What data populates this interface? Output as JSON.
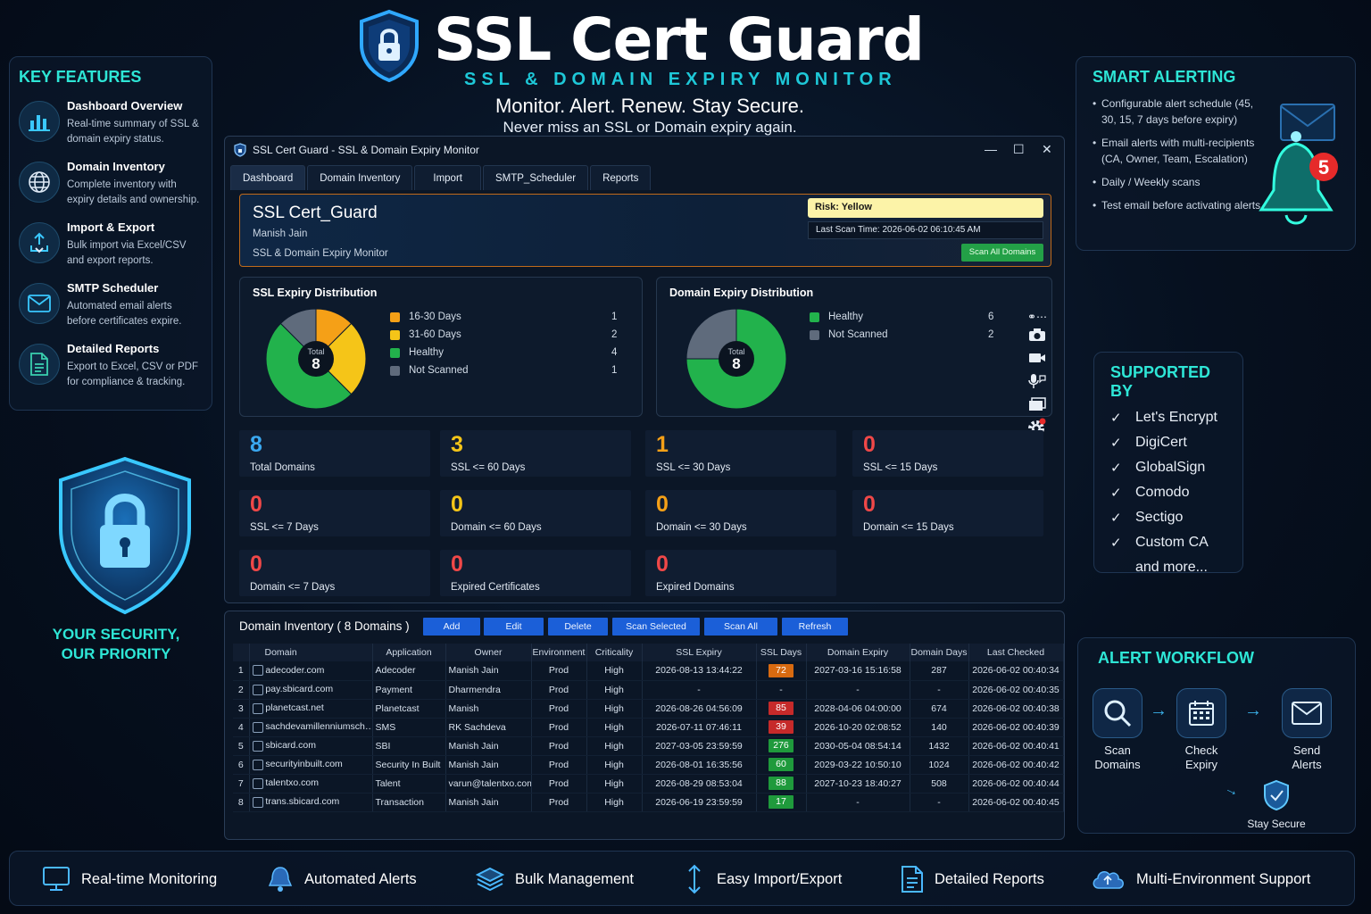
{
  "header": {
    "title": "SSL Cert Guard",
    "subtitle": "SSL & DOMAIN EXPIRY MONITOR",
    "tagline": "Monitor. Alert. Renew. Stay Secure.",
    "tagline2": "Never miss an SSL or Domain expiry again."
  },
  "key_features": {
    "title": "KEY FEATURES",
    "items": [
      {
        "icon": "bar-chart-icon",
        "name": "Dashboard Overview",
        "desc": "Real-time summary of SSL & domain expiry status."
      },
      {
        "icon": "globe-icon",
        "name": "Domain Inventory",
        "desc": "Complete inventory with expiry details and ownership."
      },
      {
        "icon": "import-export-icon",
        "name": "Import & Export",
        "desc": "Bulk import via Excel/CSV and export reports."
      },
      {
        "icon": "mail-icon",
        "name": "SMTP Scheduler",
        "desc": "Automated email alerts before certificates expire."
      },
      {
        "icon": "document-icon",
        "name": "Detailed Reports",
        "desc": "Export to Excel, CSV or PDF for compliance & tracking."
      }
    ]
  },
  "security": {
    "line1": "YOUR SECURITY,",
    "line2": "OUR PRIORITY"
  },
  "smart_alerting": {
    "title": "SMART ALERTING",
    "items": [
      "Configurable alert schedule (45, 30, 15, 7 days before expiry)",
      "Email alerts with multi-recipients (CA, Owner, Team, Escalation)",
      "Daily / Weekly scans",
      "Test email before activating alerts"
    ],
    "bell_count": "5"
  },
  "supported_by": {
    "title": "SUPPORTED BY",
    "items": [
      "Let's Encrypt",
      "DigiCert",
      "GlobalSign",
      "Comodo",
      "Sectigo",
      "Custom CA"
    ],
    "more": "and more..."
  },
  "alert_workflow": {
    "title": "ALERT WORKFLOW",
    "steps": [
      {
        "line1": "Scan",
        "line2": "Domains"
      },
      {
        "line1": "Check",
        "line2": "Expiry"
      },
      {
        "line1": "Send",
        "line2": "Alerts"
      }
    ],
    "final": "Stay Secure"
  },
  "window": {
    "title": "SSL Cert Guard - SSL & Domain Expiry Monitor",
    "tabs": [
      "Dashboard",
      "Domain Inventory",
      "Import",
      "SMTP_Scheduler",
      "Reports"
    ],
    "hero": {
      "name": "SSL Cert_Guard",
      "user": "Manish Jain",
      "desc": "SSL & Domain Expiry Monitor",
      "risk": "Risk: Yellow",
      "last_scan": "Last Scan Time: 2026-06-02 06:10:45 AM",
      "scan_button": "Scan All Domains"
    },
    "ssl_chart": {
      "title": "SSL Expiry Distribution",
      "total_label": "Total",
      "total": "8",
      "legend": [
        {
          "label": "16-30 Days",
          "value": "1",
          "color": "#f5a017"
        },
        {
          "label": "31-60 Days",
          "value": "2",
          "color": "#f5c518"
        },
        {
          "label": "Healthy",
          "value": "4",
          "color": "#22b24c"
        },
        {
          "label": "Not Scanned",
          "value": "1",
          "color": "#5f6b7c"
        }
      ]
    },
    "domain_chart": {
      "title": "Domain Expiry Distribution",
      "total_label": "Total",
      "total": "8",
      "legend": [
        {
          "label": "Healthy",
          "value": "6",
          "color": "#22b24c"
        },
        {
          "label": "Not Scanned",
          "value": "2",
          "color": "#5f6b7c"
        }
      ]
    },
    "stats": [
      {
        "num": "8",
        "label": "Total Domains",
        "color": "#3aa8f0"
      },
      {
        "num": "3",
        "label": "SSL <= 60 Days",
        "color": "#f5c518"
      },
      {
        "num": "1",
        "label": "SSL <= 30 Days",
        "color": "#f5a017"
      },
      {
        "num": "0",
        "label": "SSL <= 15 Days",
        "color": "#f04848"
      },
      {
        "num": "0",
        "label": "SSL <= 7 Days",
        "color": "#f04848"
      },
      {
        "num": "0",
        "label": "Domain <= 60 Days",
        "color": "#f5c518"
      },
      {
        "num": "0",
        "label": "Domain <= 30 Days",
        "color": "#f5a017"
      },
      {
        "num": "0",
        "label": "Domain <= 15 Days",
        "color": "#f04848"
      },
      {
        "num": "0",
        "label": "Domain <= 7 Days",
        "color": "#f04848"
      },
      {
        "num": "0",
        "label": "Expired Certificates",
        "color": "#f04848"
      },
      {
        "num": "0",
        "label": "Expired Domains",
        "color": "#f04848"
      }
    ]
  },
  "inventory": {
    "title": "Domain Inventory ( 8 Domains )",
    "buttons": [
      "Add",
      "Edit",
      "Delete",
      "Scan Selected",
      "Scan All",
      "Refresh"
    ],
    "columns": [
      "Domain",
      "Application",
      "Owner",
      "Environment",
      "Criticality",
      "SSL Expiry",
      "SSL Days",
      "Domain Expiry",
      "Domain Days",
      "Last Checked"
    ],
    "rows": [
      {
        "n": "1",
        "domain": "adecoder.com",
        "app": "Adecoder",
        "owner": "Manish Jain",
        "env": "Prod",
        "crit": "High",
        "ssl_exp": "2026-08-13 13:44:22",
        "ssl_days": "72",
        "ssl_color": "#d86a10",
        "dom_exp": "2027-03-16 15:16:58",
        "dom_days": "287",
        "checked": "2026-06-02 00:40:34"
      },
      {
        "n": "2",
        "domain": "pay.sbicard.com",
        "app": "Payment",
        "owner": "Dharmendra",
        "env": "Prod",
        "crit": "High",
        "ssl_exp": "-",
        "ssl_days": "-",
        "ssl_color": "",
        "dom_exp": "-",
        "dom_days": "-",
        "checked": "2026-06-02 00:40:35"
      },
      {
        "n": "3",
        "domain": "planetcast.net",
        "app": "Planetcast",
        "owner": "Manish",
        "env": "Prod",
        "crit": "High",
        "ssl_exp": "2026-08-26 04:56:09",
        "ssl_days": "85",
        "ssl_color": "#c62a2a",
        "dom_exp": "2028-04-06 04:00:00",
        "dom_days": "674",
        "checked": "2026-06-02 00:40:38"
      },
      {
        "n": "4",
        "domain": "sachdevamillenniumsch…",
        "app": "SMS",
        "owner": "RK Sachdeva",
        "env": "Prod",
        "crit": "High",
        "ssl_exp": "2026-07-11 07:46:11",
        "ssl_days": "39",
        "ssl_color": "#c62a2a",
        "dom_exp": "2026-10-20 02:08:52",
        "dom_days": "140",
        "checked": "2026-06-02 00:40:39"
      },
      {
        "n": "5",
        "domain": "sbicard.com",
        "app": "SBI",
        "owner": "Manish Jain",
        "env": "Prod",
        "crit": "High",
        "ssl_exp": "2027-03-05 23:59:59",
        "ssl_days": "276",
        "ssl_color": "#1f9a3c",
        "dom_exp": "2030-05-04 08:54:14",
        "dom_days": "1432",
        "checked": "2026-06-02 00:40:41"
      },
      {
        "n": "6",
        "domain": "securityinbuilt.com",
        "app": "Security In Built",
        "owner": "Manish Jain",
        "env": "Prod",
        "crit": "High",
        "ssl_exp": "2026-08-01 16:35:56",
        "ssl_days": "60",
        "ssl_color": "#1f9a3c",
        "dom_exp": "2029-03-22 10:50:10",
        "dom_days": "1024",
        "checked": "2026-06-02 00:40:42"
      },
      {
        "n": "7",
        "domain": "talentxo.com",
        "app": "Talent",
        "owner": "varun@talentxo.com",
        "env": "Prod",
        "crit": "High",
        "ssl_exp": "2026-08-29 08:53:04",
        "ssl_days": "88",
        "ssl_color": "#1f9a3c",
        "dom_exp": "2027-10-23 18:40:27",
        "dom_days": "508",
        "checked": "2026-06-02 00:40:44"
      },
      {
        "n": "8",
        "domain": "trans.sbicard.com",
        "app": "Transaction",
        "owner": "Manish Jain",
        "env": "Prod",
        "crit": "High",
        "ssl_exp": "2026-06-19 23:59:59",
        "ssl_days": "17",
        "ssl_color": "#1f9a3c",
        "dom_exp": "-",
        "dom_days": "-",
        "checked": "2026-06-02 00:40:45"
      }
    ]
  },
  "bottom_bar": [
    {
      "icon": "monitor-icon",
      "label": "Real-time Monitoring"
    },
    {
      "icon": "bell-icon",
      "label": "Automated Alerts"
    },
    {
      "icon": "layers-icon",
      "label": "Bulk Management"
    },
    {
      "icon": "import-export-icon",
      "label": "Easy Import/Export"
    },
    {
      "icon": "document-icon",
      "label": "Detailed Reports"
    },
    {
      "icon": "cloud-icon",
      "label": "Multi-Environment Support"
    }
  ]
}
